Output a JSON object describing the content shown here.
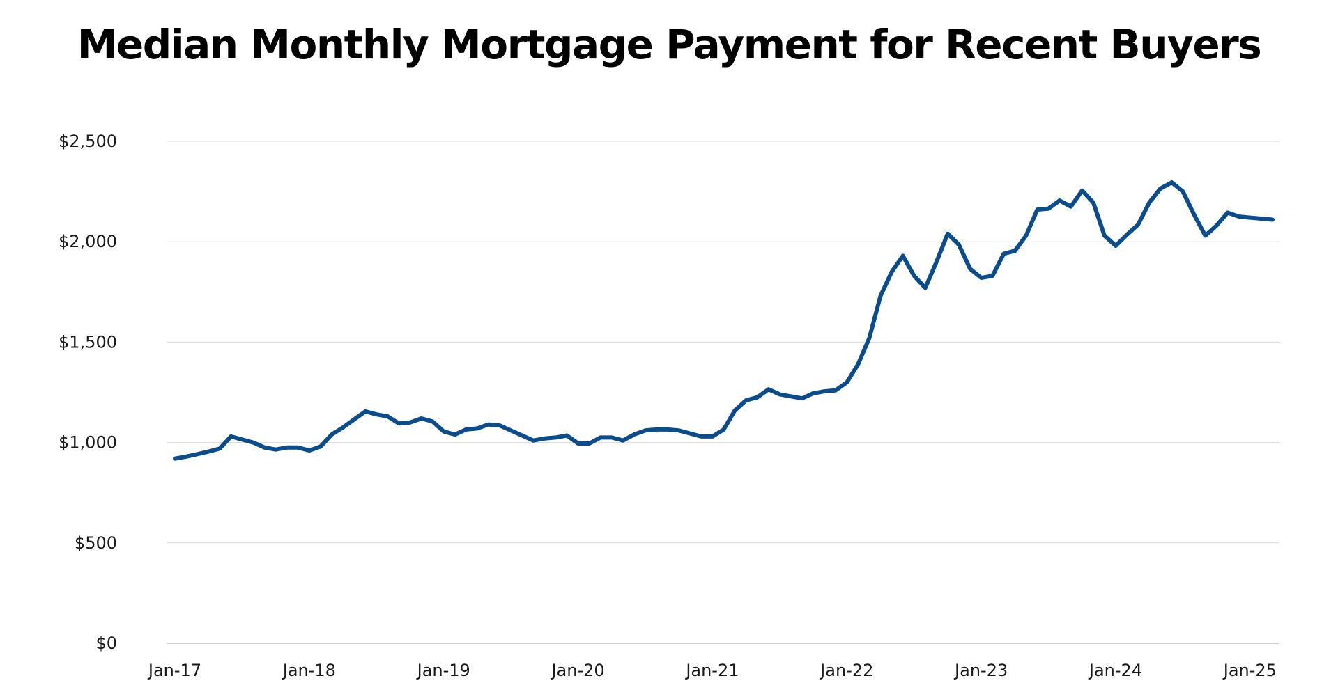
{
  "chart_data": {
    "type": "line",
    "title": "Median Monthly Mortgage Payment for Recent Buyers",
    "xlabel": "",
    "ylabel": "",
    "ylim": [
      0,
      2500
    ],
    "yticks": [
      {
        "value": 0,
        "label": "$0"
      },
      {
        "value": 500,
        "label": "$500"
      },
      {
        "value": 1000,
        "label": "$1,000"
      },
      {
        "value": 1500,
        "label": "$1,500"
      },
      {
        "value": 2000,
        "label": "$2,000"
      },
      {
        "value": 2500,
        "label": "$2,500"
      }
    ],
    "xticks": [
      {
        "index": 0,
        "label": "Jan-17"
      },
      {
        "index": 12,
        "label": "Jan-18"
      },
      {
        "index": 24,
        "label": "Jan-19"
      },
      {
        "index": 36,
        "label": "Jan-20"
      },
      {
        "index": 48,
        "label": "Jan-21"
      },
      {
        "index": 60,
        "label": "Jan-22"
      },
      {
        "index": 72,
        "label": "Jan-23"
      },
      {
        "index": 84,
        "label": "Jan-24"
      },
      {
        "index": 96,
        "label": "Jan-25"
      }
    ],
    "grid": true,
    "legend": "none",
    "line_color": "#0b4d8c",
    "series": [
      {
        "values": [
          920,
          930,
          942,
          955,
          970,
          1030,
          1015,
          1000,
          975,
          965,
          975,
          975,
          960,
          980,
          1040,
          1075,
          1115,
          1155,
          1140,
          1130,
          1095,
          1100,
          1120,
          1105,
          1055,
          1040,
          1065,
          1070,
          1090,
          1085,
          1060,
          1035,
          1010,
          1020,
          1025,
          1035,
          995,
          995,
          1025,
          1025,
          1010,
          1040,
          1060,
          1065,
          1065,
          1060,
          1045,
          1030,
          1030,
          1065,
          1160,
          1210,
          1225,
          1265,
          1240,
          1230,
          1220,
          1245,
          1255,
          1260,
          1300,
          1390,
          1520,
          1730,
          1850,
          1930,
          1830,
          1770,
          1900,
          2040,
          1985,
          1865,
          1820,
          1830,
          1940,
          1955,
          2030,
          2160,
          2165,
          2205,
          2175,
          2255,
          2195,
          2030,
          1980,
          2035,
          2085,
          2195,
          2265,
          2295,
          2250,
          2135,
          2030,
          2080,
          2145,
          2125,
          2120,
          2115,
          2110
        ]
      }
    ]
  }
}
